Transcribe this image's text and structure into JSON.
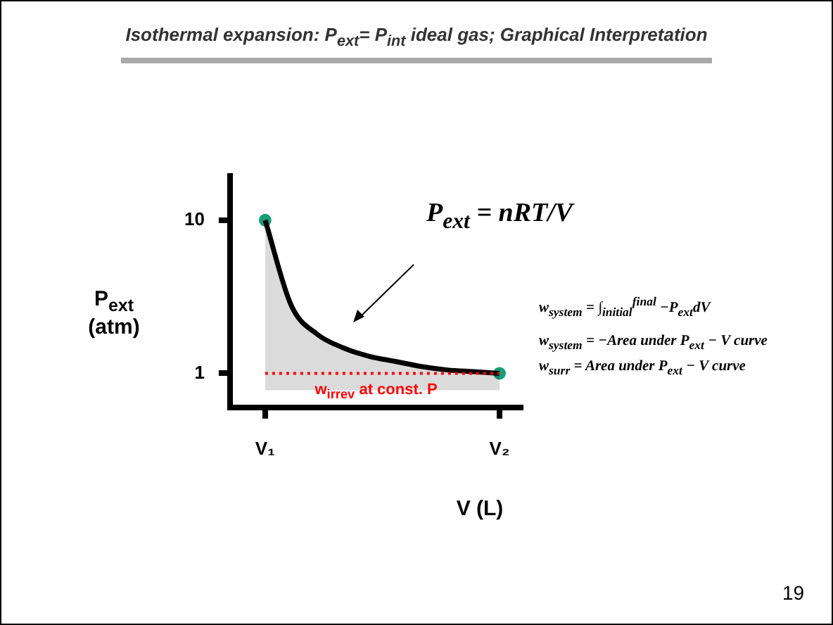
{
  "chart_data": {
    "type": "area",
    "title": "Isothermal expansion: P$_{ext}$= P$_{int}$  ideal gas;  Graphical Interpretation",
    "xlabel": "V (L)",
    "ylabel": "P$_{ext}$ (atm)",
    "categories": [
      "V₁",
      null,
      null,
      null,
      null,
      null,
      null,
      null,
      null,
      "V₂"
    ],
    "ylim": [
      -1,
      12.6
    ],
    "yticks": [
      1,
      10
    ],
    "series": [
      {
        "color": "#000000",
        "values": [
          10,
          5,
          3.3,
          2.5,
          2,
          1.7,
          1.4,
          1.2,
          1.1,
          1
        ]
      },
      {
        "type": "scatter",
        "color": "#1a9e77",
        "x": [
          "V₁",
          "V₂"
        ],
        "values": [
          10,
          1
        ]
      }
    ],
    "grid": false,
    "ref_lines": [
      {
        "axis": "y",
        "value": 1,
        "label": "w$_{irrev}$ at const. P",
        "color": "#ff0000",
        "line_style": "dotted"
      }
    ],
    "annotations": [
      "P$_{ext}$ = nRT/V",
      "w$_{system}$ = ∫$_{initial}$$^{final}$ −P$_{ext}$dV",
      "w$_{system}$ = −Area under P$_{ext}$ − V curve",
      "w$_{surr}$ = Area under P$_{ext}$ − V curve",
      "19"
    ]
  }
}
